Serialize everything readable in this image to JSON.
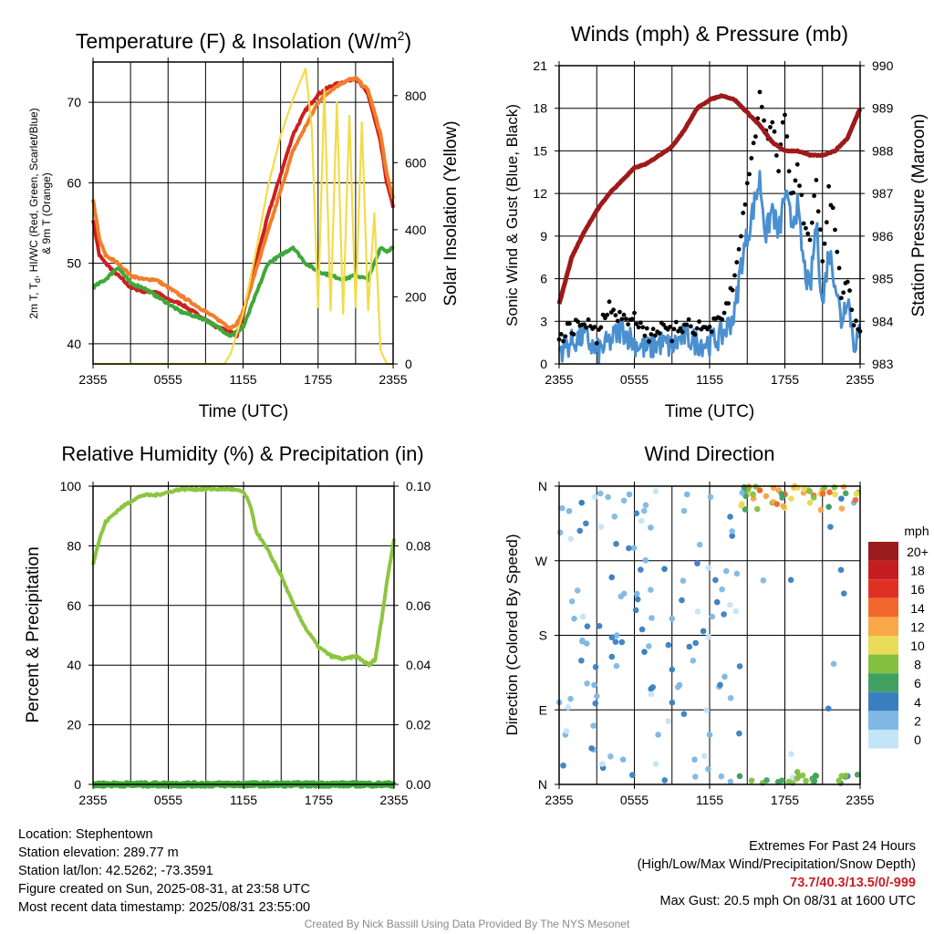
{
  "panels": {
    "temp": {
      "title": "Temperature (F) & Insolation (W/m",
      "title_sup": "2",
      "title_end": ")",
      "xlabel": "Time (UTC)",
      "ylabel_line1": "2m T, T",
      "ylabel_sub": "d",
      "ylabel_line1_end": ", HI/WC (Red, Green, Scarlet/Blue)",
      "ylabel_line2": "& 9m T (Orange)",
      "y2label": "Solar Insolation (Yellow)"
    },
    "wind": {
      "title": "Winds (mph) & Pressure (mb)",
      "xlabel": "Time (UTC)",
      "ylabel": "Sonic Wind & Gust (Blue, Black)",
      "y2label": "Station Pressure (Maroon)"
    },
    "rh": {
      "title": "Relative Humidity (%) & Precipitation (in)",
      "ylabel": "Percent & Precipitation"
    },
    "dir": {
      "title": "Wind Direction",
      "ylabel": "Direction (Colored By Speed)",
      "legend_title": "mph"
    }
  },
  "info_left": [
    "Location: Stephentown",
    "Station elevation: 289.77 m",
    "Station lat/lon: 42.5262; -73.3591",
    "Figure created on Sun, 2025-08-31, at 23:58 UTC",
    "Most recent data timestamp: 2025/08/31 23:55:00"
  ],
  "info_right": {
    "line1": "Extremes For Past 24 Hours",
    "line2": "(High/Low/Max Wind/Precipitation/Snow Depth)",
    "values": "73.7/40.3/13.5/0/-999",
    "gust": "Max Gust: 20.5 mph On 08/31 at 1600 UTC"
  },
  "credit": "Created By Nick Bassill Using Data Provided By The NYS Mesonet",
  "chart_data": [
    {
      "type": "line",
      "title": "Temperature (F) & Insolation (W/m2)",
      "xlabel": "Time (UTC)",
      "ylabel": "2m T, Td, HI/WC (Red, Green, Scarlet/Blue) & 9m T (Orange)",
      "y2label": "Solar Insolation (Yellow)",
      "x_ticks": [
        "2355",
        "0555",
        "1155",
        "1755",
        "2355"
      ],
      "xlim_hours": [
        0,
        24
      ],
      "ylim": [
        37.5,
        75
      ],
      "y_ticks": [
        40,
        50,
        60,
        70
      ],
      "y2lim": [
        0,
        900
      ],
      "y2_ticks": [
        0,
        200,
        400,
        600,
        800
      ],
      "grid": true,
      "series": [
        {
          "name": "2m T",
          "color": "#cc2020",
          "x": [
            0,
            0.5,
            1,
            2,
            3,
            4,
            5,
            6,
            7,
            8,
            9,
            10,
            11,
            11.5,
            12,
            13,
            14,
            15,
            16,
            17,
            18,
            19,
            20,
            21,
            22,
            23,
            23.5,
            24
          ],
          "y": [
            55.5,
            51,
            50,
            48.5,
            47,
            46.5,
            46.5,
            45.5,
            45,
            44,
            43,
            42,
            41.5,
            41,
            43.5,
            50,
            56,
            61,
            66,
            69,
            71,
            72,
            72.5,
            73,
            71,
            65,
            60,
            57
          ]
        },
        {
          "name": "9m T",
          "color": "#f07e2a",
          "x": [
            0,
            0.5,
            1,
            2,
            3,
            4,
            5,
            6,
            7,
            8,
            9,
            10,
            11,
            11.5,
            12,
            13,
            14,
            15,
            16,
            17,
            18,
            19,
            20,
            21,
            22,
            23,
            23.5,
            24
          ],
          "y": [
            58,
            53,
            51,
            50,
            48.5,
            48,
            48,
            47,
            46,
            45,
            44,
            43,
            42,
            42.5,
            44,
            49,
            54,
            59,
            64,
            67,
            70,
            71.5,
            72.5,
            73,
            71.5,
            66,
            61,
            58
          ]
        },
        {
          "name": "Td",
          "color": "#3fa83a",
          "x": [
            0,
            1,
            2,
            3,
            4,
            5,
            6,
            7,
            8,
            9,
            10,
            11,
            12,
            13,
            14,
            15,
            16,
            17,
            18,
            19,
            20,
            21,
            22,
            23,
            23.5,
            24
          ],
          "y": [
            47,
            48,
            49.5,
            47.5,
            47,
            46,
            45,
            44,
            43.5,
            43,
            42,
            41,
            42,
            46,
            50,
            51,
            52,
            50,
            49,
            48.5,
            48,
            48.5,
            48,
            52,
            51.5,
            52
          ]
        },
        {
          "name": "Solar Insolation",
          "color": "#f2dc4a",
          "axis": "y2",
          "x": [
            0,
            10.5,
            11,
            12,
            13,
            14,
            15,
            16,
            17,
            17.5,
            18,
            18.5,
            19,
            19.5,
            20,
            20.5,
            21,
            21.5,
            22,
            22.5,
            23,
            23.5,
            24
          ],
          "y": [
            0,
            0,
            30,
            150,
            330,
            530,
            680,
            790,
            880,
            700,
            170,
            820,
            160,
            780,
            150,
            740,
            170,
            720,
            160,
            450,
            40,
            0,
            0
          ]
        }
      ]
    },
    {
      "type": "line",
      "title": "Winds (mph) & Pressure (mb)",
      "xlabel": "Time (UTC)",
      "ylabel": "Sonic Wind & Gust (Blue, Black)",
      "y2label": "Station Pressure (Maroon)",
      "x_ticks": [
        "2355",
        "0555",
        "1155",
        "1755",
        "2355"
      ],
      "xlim_hours": [
        0,
        24
      ],
      "ylim": [
        0,
        21
      ],
      "y_ticks": [
        0,
        3,
        6,
        9,
        12,
        15,
        18,
        21
      ],
      "y2lim": [
        983,
        990
      ],
      "y2_ticks": [
        983,
        984,
        985,
        986,
        987,
        988,
        989,
        990
      ],
      "grid": true,
      "series": [
        {
          "name": "Sonic Wind",
          "color": "#4a90d0",
          "x": [
            0,
            1,
            2,
            3,
            4,
            5,
            6,
            7,
            8,
            9,
            10,
            11,
            12,
            13,
            14,
            14.5,
            15,
            15.5,
            16,
            16.5,
            17,
            17.5,
            18,
            18.5,
            19,
            19.5,
            20,
            20.5,
            21,
            21.5,
            22,
            22.5,
            23,
            23.5,
            24
          ],
          "y": [
            1,
            1.5,
            2,
            0.8,
            1.5,
            2.5,
            1.5,
            1,
            1.5,
            1.2,
            2,
            1.5,
            1.5,
            2,
            3.5,
            7,
            9,
            11,
            13,
            9,
            11,
            9,
            12,
            10,
            11,
            7,
            5,
            10,
            4,
            8,
            6,
            3,
            5,
            1.5,
            2
          ]
        },
        {
          "name": "Gust",
          "color": "#000000",
          "x": [
            0,
            1,
            2,
            3,
            4,
            5,
            6,
            7,
            8,
            9,
            10,
            11,
            12,
            13,
            14,
            14.5,
            15,
            15.5,
            16,
            16.5,
            17,
            17.5,
            18,
            18.5,
            19,
            19.5,
            20,
            20.5,
            21,
            21.5,
            22,
            22.5,
            23,
            23.5,
            24
          ],
          "y": [
            2,
            2.5,
            3,
            2,
            4,
            3,
            3.5,
            2,
            2.5,
            2,
            3,
            2.5,
            2.5,
            3,
            6,
            9,
            13,
            15,
            19,
            16,
            17,
            14,
            18,
            12,
            14,
            10,
            9,
            13,
            7,
            12,
            10,
            5,
            6,
            3,
            2.5
          ]
        },
        {
          "name": "Station Pressure",
          "color": "#9e1a1a",
          "axis": "y2",
          "x": [
            0,
            1,
            2,
            3,
            4,
            5,
            6,
            7,
            8,
            9,
            10,
            11,
            12,
            13,
            14,
            15,
            16,
            17,
            18,
            19,
            20,
            21,
            22,
            23,
            24
          ],
          "y": [
            984.4,
            985.5,
            986.1,
            986.6,
            987.0,
            987.3,
            987.6,
            987.7,
            987.9,
            988.1,
            988.5,
            989.0,
            989.2,
            989.3,
            989.2,
            988.9,
            988.6,
            988.2,
            988.0,
            988.0,
            987.9,
            987.9,
            988.0,
            988.3,
            989.0
          ]
        }
      ]
    },
    {
      "type": "line",
      "title": "Relative Humidity (%) & Precipitation (in)",
      "ylabel": "Percent & Precipitation",
      "x_ticks": [
        "2355",
        "0555",
        "1155",
        "1755",
        "2355"
      ],
      "xlim_hours": [
        0,
        24
      ],
      "ylim": [
        0,
        100
      ],
      "y_ticks": [
        0,
        20,
        40,
        60,
        80,
        100
      ],
      "y2lim": [
        0,
        0.1
      ],
      "y2_ticks": [
        "0.00",
        "0.02",
        "0.04",
        "0.06",
        "0.08",
        "0.10"
      ],
      "grid": true,
      "series": [
        {
          "name": "Relative Humidity",
          "color": "#8cc63f",
          "x": [
            0,
            0.5,
            1,
            2,
            3,
            4,
            5,
            6,
            7,
            8,
            9,
            10,
            11,
            12,
            12.5,
            13,
            14,
            15,
            16,
            17,
            18,
            19,
            20,
            21,
            22,
            22.5,
            23,
            23.5,
            24
          ],
          "y": [
            74,
            82,
            88,
            92,
            95,
            97,
            97,
            98,
            99,
            99,
            99,
            99,
            99,
            98,
            94,
            85,
            78,
            70,
            60,
            52,
            46,
            43,
            42,
            43,
            40,
            42,
            55,
            70,
            82
          ]
        },
        {
          "name": "Precipitation",
          "color": "#3fa83a",
          "axis": "y2",
          "x": [
            0,
            24
          ],
          "y": [
            0,
            0
          ]
        }
      ]
    },
    {
      "type": "scatter",
      "title": "Wind Direction",
      "ylabel": "Direction (Colored By Speed)",
      "x_ticks": [
        "2355",
        "0555",
        "1155",
        "1755",
        "2355"
      ],
      "xlim_hours": [
        0,
        24
      ],
      "y_ticks": [
        "N",
        "E",
        "S",
        "W",
        "N"
      ],
      "ylim_deg": [
        0,
        360
      ],
      "grid": true,
      "legend_title": "mph",
      "legend_labels": [
        "20+",
        "18",
        "16",
        "14",
        "12",
        "10",
        "8",
        "6",
        "4",
        "2",
        "0"
      ],
      "legend_colors": [
        "#9a1c1c",
        "#c41e22",
        "#e03024",
        "#f0682c",
        "#f8a848",
        "#e8dc58",
        "#84c040",
        "#40a060",
        "#3a80c0",
        "#80b8e4",
        "#c4e4f8"
      ],
      "points": [
        {
          "x": 0.5,
          "dir": 60,
          "spd": 1
        },
        {
          "x": 0.8,
          "dir": 330,
          "spd": 1
        },
        {
          "x": 1.2,
          "dir": 200,
          "spd": 2
        },
        {
          "x": 1.8,
          "dir": 340,
          "spd": 3
        },
        {
          "x": 2.2,
          "dir": 170,
          "spd": 2
        },
        {
          "x": 2.8,
          "dir": 120,
          "spd": 2
        },
        {
          "x": 3.5,
          "dir": 20,
          "spd": 3
        },
        {
          "x": 4.2,
          "dir": 250,
          "spd": 3
        },
        {
          "x": 4.6,
          "dir": 180,
          "spd": 2
        },
        {
          "x": 5.1,
          "dir": 30,
          "spd": 2
        },
        {
          "x": 5.6,
          "dir": 350,
          "spd": 1
        },
        {
          "x": 6.2,
          "dir": 230,
          "spd": 2
        },
        {
          "x": 6.8,
          "dir": 160,
          "spd": 3
        },
        {
          "x": 7.3,
          "dir": 310,
          "spd": 1
        },
        {
          "x": 7.9,
          "dir": 60,
          "spd": 2
        },
        {
          "x": 8.4,
          "dir": 260,
          "spd": 3
        },
        {
          "x": 9.0,
          "dir": 200,
          "spd": 1
        },
        {
          "x": 9.6,
          "dir": 120,
          "spd": 2
        },
        {
          "x": 10.2,
          "dir": 350,
          "spd": 2
        },
        {
          "x": 10.8,
          "dir": 30,
          "spd": 2
        },
        {
          "x": 11.5,
          "dir": 185,
          "spd": 4
        },
        {
          "x": 12.0,
          "dir": 60,
          "spd": 2
        },
        {
          "x": 12.6,
          "dir": 220,
          "spd": 3
        },
        {
          "x": 13.2,
          "dir": 130,
          "spd": 2
        },
        {
          "x": 13.8,
          "dir": 300,
          "spd": 3
        },
        {
          "x": 14.4,
          "dir": 10,
          "spd": 6
        },
        {
          "x": 15.0,
          "dir": 350,
          "spd": 10
        },
        {
          "x": 15.5,
          "dir": 345,
          "spd": 12
        },
        {
          "x": 16.0,
          "dir": 355,
          "spd": 14
        },
        {
          "x": 16.5,
          "dir": 348,
          "spd": 11
        },
        {
          "x": 17.0,
          "dir": 340,
          "spd": 8
        },
        {
          "x": 17.5,
          "dir": 355,
          "spd": 12
        },
        {
          "x": 18.0,
          "dir": 350,
          "spd": 13
        },
        {
          "x": 18.5,
          "dir": 345,
          "spd": 10
        },
        {
          "x": 19.0,
          "dir": 15,
          "spd": 8
        },
        {
          "x": 19.5,
          "dir": 352,
          "spd": 12
        },
        {
          "x": 20.0,
          "dir": 340,
          "spd": 9
        },
        {
          "x": 20.5,
          "dir": 10,
          "spd": 7
        },
        {
          "x": 21.0,
          "dir": 355,
          "spd": 11
        },
        {
          "x": 21.5,
          "dir": 335,
          "spd": 6
        },
        {
          "x": 22.0,
          "dir": 350,
          "spd": 10
        },
        {
          "x": 22.5,
          "dir": 345,
          "spd": 4
        },
        {
          "x": 23.0,
          "dir": 10,
          "spd": 3
        },
        {
          "x": 23.5,
          "dir": 340,
          "spd": 2
        }
      ]
    }
  ]
}
